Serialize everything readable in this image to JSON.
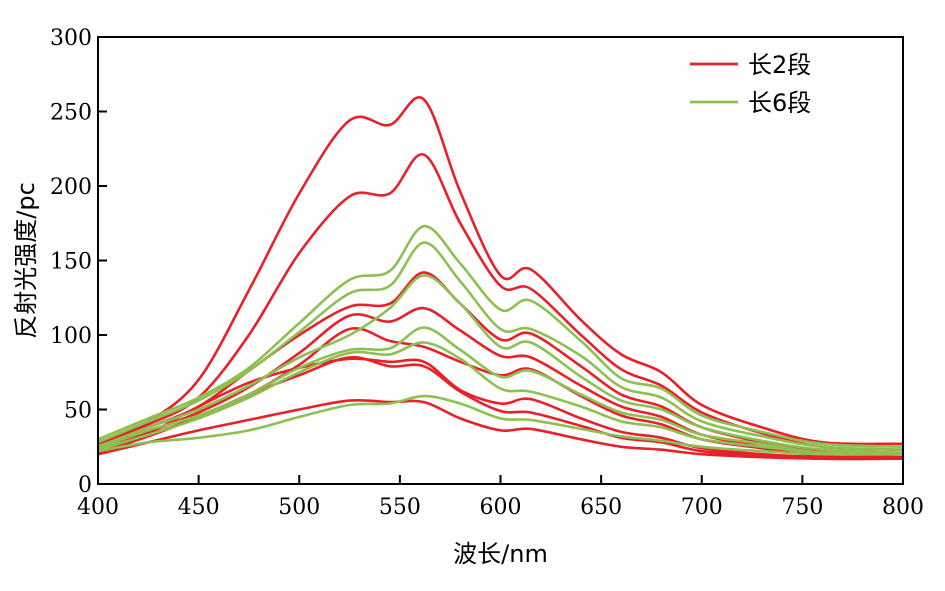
{
  "chart_data": {
    "type": "line",
    "xlabel": "波长/nm",
    "ylabel": "反射光强度/pc",
    "xlim": [
      400,
      800
    ],
    "ylim": [
      0,
      300
    ],
    "xticks": [
      400,
      450,
      500,
      550,
      600,
      650,
      700,
      750,
      800
    ],
    "yticks": [
      0,
      50,
      100,
      150,
      200,
      250,
      300
    ],
    "grid": false,
    "legend_position": "top-right",
    "legend": [
      {
        "label": "长2段",
        "color": "#e8202a"
      },
      {
        "label": "长6段",
        "color": "#8cc152"
      }
    ],
    "series": [
      {
        "group": 0,
        "color": "#e8202a",
        "x": [
          400,
          425,
          450,
          475,
          500,
          525,
          545,
          562,
          580,
          600,
          615,
          640,
          660,
          680,
          700,
          730,
          760,
          800
        ],
        "y": [
          28,
          42,
          70,
          130,
          195,
          244,
          241,
          258,
          196,
          140,
          144,
          110,
          87,
          75,
          53,
          38,
          28,
          27
        ]
      },
      {
        "group": 0,
        "color": "#e8202a",
        "x": [
          400,
          425,
          450,
          475,
          500,
          525,
          545,
          562,
          580,
          600,
          615,
          640,
          660,
          680,
          700,
          730,
          760,
          800
        ],
        "y": [
          27,
          40,
          58,
          100,
          155,
          193,
          195,
          221,
          175,
          133,
          131,
          100,
          77,
          66,
          48,
          34,
          25,
          23
        ]
      },
      {
        "group": 0,
        "color": "#e8202a",
        "x": [
          400,
          425,
          450,
          475,
          500,
          525,
          545,
          562,
          580,
          600,
          615,
          640,
          660,
          680,
          700,
          730,
          760,
          800
        ],
        "y": [
          25,
          38,
          52,
          76,
          100,
          119,
          121,
          142,
          121,
          97,
          101,
          79,
          60,
          52,
          38,
          28,
          22,
          20
        ]
      },
      {
        "group": 0,
        "color": "#e8202a",
        "x": [
          400,
          425,
          450,
          475,
          500,
          525,
          545,
          562,
          580,
          600,
          615,
          640,
          660,
          680,
          700,
          730,
          760,
          800
        ],
        "y": [
          24,
          35,
          48,
          65,
          88,
          113,
          109,
          118,
          103,
          86,
          85,
          66,
          52,
          45,
          33,
          25,
          20,
          18
        ]
      },
      {
        "group": 0,
        "color": "#e8202a",
        "x": [
          400,
          425,
          450,
          475,
          500,
          525,
          545,
          562,
          580,
          600,
          615,
          640,
          660,
          680,
          700,
          730,
          760,
          800
        ],
        "y": [
          22,
          33,
          45,
          60,
          80,
          104,
          96,
          92,
          82,
          73,
          77,
          59,
          46,
          40,
          30,
          24,
          19,
          18
        ]
      },
      {
        "group": 0,
        "color": "#e8202a",
        "x": [
          400,
          425,
          450,
          475,
          500,
          525,
          545,
          562,
          580,
          600,
          615,
          640,
          660,
          680,
          700,
          730,
          760,
          800
        ],
        "y": [
          22,
          34,
          52,
          68,
          78,
          84,
          82,
          82,
          63,
          54,
          57,
          44,
          35,
          31,
          24,
          20,
          18,
          17
        ]
      },
      {
        "group": 0,
        "color": "#e8202a",
        "x": [
          400,
          425,
          450,
          475,
          500,
          525,
          545,
          562,
          580,
          600,
          615,
          640,
          660,
          680,
          700,
          730,
          760,
          800
        ],
        "y": [
          21,
          32,
          45,
          60,
          73,
          85,
          79,
          79,
          62,
          49,
          48,
          39,
          31,
          28,
          22,
          19,
          17,
          17
        ]
      },
      {
        "group": 0,
        "color": "#e8202a",
        "x": [
          400,
          425,
          450,
          475,
          500,
          525,
          545,
          562,
          580,
          600,
          615,
          640,
          660,
          680,
          700,
          730,
          760,
          800
        ],
        "y": [
          20,
          28,
          36,
          43,
          50,
          56,
          55,
          55,
          44,
          36,
          37,
          30,
          25,
          23,
          20,
          18,
          17,
          17
        ]
      },
      {
        "group": 1,
        "color": "#8cc152",
        "x": [
          400,
          425,
          450,
          475,
          500,
          525,
          545,
          562,
          580,
          600,
          615,
          640,
          660,
          680,
          700,
          730,
          760,
          800
        ],
        "y": [
          30,
          44,
          58,
          78,
          108,
          137,
          143,
          173,
          148,
          117,
          123,
          96,
          71,
          64,
          46,
          35,
          27,
          25
        ]
      },
      {
        "group": 1,
        "color": "#8cc152",
        "x": [
          400,
          425,
          450,
          475,
          500,
          525,
          545,
          562,
          580,
          600,
          615,
          640,
          660,
          680,
          700,
          730,
          760,
          800
        ],
        "y": [
          28,
          42,
          56,
          76,
          102,
          128,
          133,
          162,
          136,
          104,
          104,
          86,
          65,
          58,
          42,
          32,
          25,
          23
        ]
      },
      {
        "group": 1,
        "color": "#8cc152",
        "x": [
          400,
          425,
          450,
          475,
          500,
          525,
          545,
          562,
          580,
          600,
          615,
          640,
          660,
          680,
          700,
          730,
          760,
          800
        ],
        "y": [
          25,
          38,
          50,
          66,
          85,
          100,
          118,
          140,
          121,
          92,
          95,
          72,
          56,
          50,
          38,
          29,
          23,
          21
        ]
      },
      {
        "group": 1,
        "color": "#8cc152",
        "x": [
          400,
          425,
          450,
          475,
          500,
          525,
          545,
          562,
          580,
          600,
          615,
          640,
          660,
          680,
          700,
          730,
          760,
          800
        ],
        "y": [
          24,
          36,
          46,
          60,
          78,
          90,
          91,
          105,
          90,
          72,
          76,
          60,
          48,
          43,
          33,
          27,
          21,
          20
        ]
      },
      {
        "group": 1,
        "color": "#8cc152",
        "x": [
          400,
          425,
          450,
          475,
          500,
          525,
          545,
          562,
          580,
          600,
          615,
          640,
          660,
          680,
          700,
          730,
          760,
          800
        ],
        "y": [
          23,
          33,
          44,
          58,
          75,
          88,
          87,
          95,
          84,
          64,
          62,
          52,
          42,
          38,
          30,
          25,
          21,
          20
        ]
      },
      {
        "group": 1,
        "color": "#8cc152",
        "x": [
          400,
          425,
          450,
          475,
          500,
          525,
          545,
          562,
          580,
          600,
          615,
          640,
          660,
          680,
          700,
          730,
          760,
          800
        ],
        "y": [
          22,
          28,
          31,
          36,
          45,
          53,
          54,
          59,
          54,
          44,
          43,
          37,
          32,
          29,
          25,
          22,
          20,
          20
        ]
      }
    ]
  }
}
